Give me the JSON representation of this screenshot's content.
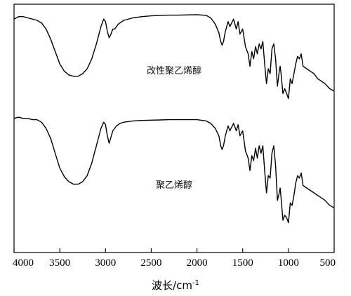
{
  "chart_data": {
    "type": "line",
    "title": "",
    "xlabel": "波长/cm",
    "xlabel_superscript": "-1",
    "ylabel": "",
    "x_reversed": true,
    "xlim": [
      4000,
      500
    ],
    "xticks": [
      4000,
      3500,
      3000,
      2500,
      2000,
      1500,
      1000,
      500
    ],
    "grid": false,
    "legend": "none",
    "line_color": "#000000",
    "series": [
      {
        "name": "改性聚乙烯醇",
        "x": [
          4000,
          3950,
          3900,
          3850,
          3800,
          3750,
          3700,
          3650,
          3600,
          3550,
          3500,
          3450,
          3400,
          3350,
          3300,
          3250,
          3200,
          3150,
          3100,
          3050,
          3020,
          3000,
          2980,
          2960,
          2940,
          2920,
          2900,
          2880,
          2860,
          2840,
          2800,
          2700,
          2600,
          2500,
          2400,
          2300,
          2200,
          2100,
          2000,
          1900,
          1850,
          1800,
          1760,
          1740,
          1725,
          1710,
          1690,
          1660,
          1640,
          1600,
          1570,
          1550,
          1530,
          1500,
          1470,
          1440,
          1420,
          1400,
          1380,
          1360,
          1340,
          1320,
          1300,
          1280,
          1260,
          1240,
          1220,
          1200,
          1180,
          1160,
          1140,
          1120,
          1100,
          1090,
          1080,
          1060,
          1040,
          1020,
          1000,
          980,
          960,
          940,
          920,
          900,
          880,
          860,
          840,
          800,
          760,
          720,
          680,
          640,
          600,
          550,
          500
        ],
        "y": [
          94,
          95,
          95,
          94.5,
          94,
          93.5,
          92.5,
          90,
          86,
          81,
          76,
          73,
          71.5,
          71,
          71,
          72,
          74,
          78,
          84,
          91,
          94,
          93,
          89,
          86.5,
          88,
          90,
          90,
          91,
          92,
          92.5,
          93.5,
          94.5,
          95,
          95.3,
          95.5,
          95.6,
          95.6,
          95.7,
          95.8,
          95.5,
          94.5,
          92,
          88.5,
          85,
          83.5,
          85,
          89,
          93,
          91,
          94,
          90,
          93,
          88,
          90,
          83,
          80,
          75,
          81,
          78,
          83,
          80,
          84,
          82,
          85,
          76,
          68,
          74,
          72,
          82,
          84,
          78,
          67,
          73,
          75,
          72,
          64,
          66,
          64,
          62,
          70,
          68,
          72,
          76,
          79,
          78,
          80,
          75,
          74,
          73,
          72,
          70,
          69,
          68,
          66,
          65
        ]
      },
      {
        "name": "聚乙烯醇",
        "x": [
          4000,
          3950,
          3900,
          3850,
          3800,
          3750,
          3700,
          3650,
          3600,
          3550,
          3500,
          3450,
          3400,
          3350,
          3300,
          3250,
          3200,
          3150,
          3100,
          3050,
          3020,
          3000,
          2980,
          2960,
          2940,
          2920,
          2900,
          2880,
          2860,
          2840,
          2800,
          2700,
          2600,
          2500,
          2400,
          2300,
          2200,
          2100,
          2000,
          1900,
          1850,
          1800,
          1760,
          1740,
          1725,
          1710,
          1690,
          1660,
          1640,
          1600,
          1570,
          1550,
          1530,
          1500,
          1470,
          1440,
          1420,
          1400,
          1380,
          1360,
          1340,
          1320,
          1300,
          1280,
          1260,
          1240,
          1220,
          1200,
          1180,
          1160,
          1140,
          1120,
          1100,
          1090,
          1080,
          1060,
          1040,
          1020,
          1000,
          980,
          960,
          940,
          920,
          900,
          880,
          860,
          840,
          800,
          760,
          720,
          680,
          640,
          600,
          550,
          500
        ],
        "y": [
          54,
          54.5,
          54,
          54,
          53.5,
          53.5,
          52.5,
          50,
          46,
          40,
          34,
          30.5,
          28.5,
          27.5,
          27.5,
          28.5,
          31,
          36,
          43,
          50,
          52.5,
          51.5,
          47,
          44,
          46.5,
          49,
          50,
          51,
          51.5,
          52,
          52.5,
          53,
          53.2,
          53.3,
          53.4,
          53.5,
          53.5,
          53.5,
          53.5,
          53,
          52,
          50,
          47,
          43,
          41.5,
          43,
          47,
          51,
          49,
          52,
          49,
          51.5,
          47,
          49,
          41,
          38,
          33,
          39,
          37,
          42,
          38,
          43,
          40,
          43,
          33,
          24,
          31,
          30,
          40,
          43,
          35,
          21,
          24,
          26,
          22,
          13,
          15,
          14,
          12,
          20,
          19,
          23,
          28,
          31,
          30,
          32,
          27,
          26,
          25,
          24,
          23,
          22,
          21,
          19,
          18
        ]
      }
    ]
  }
}
